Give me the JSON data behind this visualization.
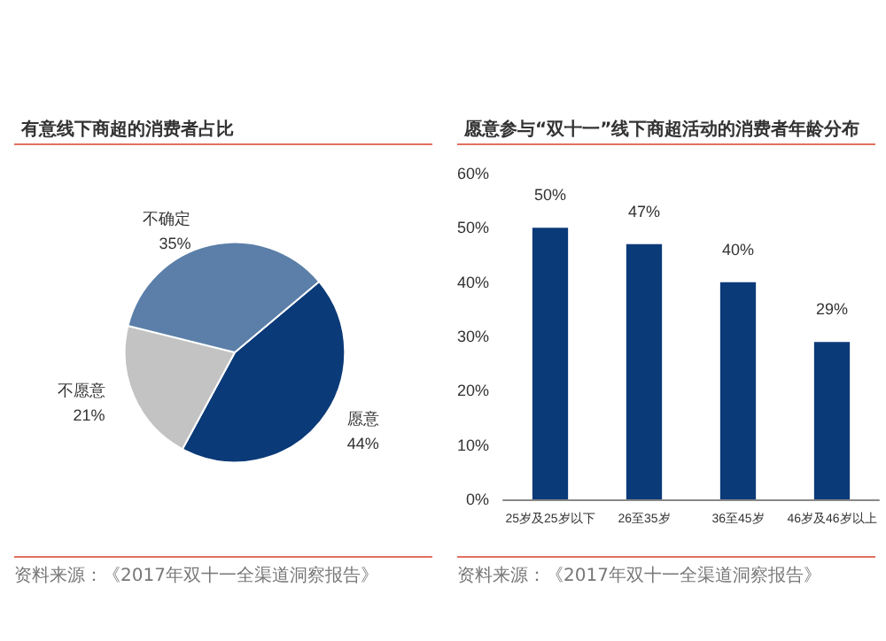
{
  "chart_data": [
    {
      "type": "pie",
      "title": "有意线下商超的消费者占比",
      "categories": [
        "愿意",
        "不愿意",
        "不确定"
      ],
      "values": [
        44,
        21,
        35
      ],
      "value_labels": [
        "44%",
        "21%",
        "35%"
      ],
      "colors": [
        "#0b3a78",
        "#c3c3c3",
        "#5b7fa8"
      ],
      "legend": false,
      "annotations": [
        "资料来源：《2017年双十一全渠道洞察报告》"
      ]
    },
    {
      "type": "bar",
      "title": "愿意参与“双十一”线下商超活动的消费者年龄分布",
      "categories": [
        "25岁及25岁以下",
        "26至35岁",
        "36至45岁",
        "46岁及46岁以上"
      ],
      "values": [
        50,
        47,
        40,
        29
      ],
      "value_labels": [
        "50%",
        "47%",
        "40%",
        "29%"
      ],
      "color": "#0b3a78",
      "grid": false,
      "legend": false,
      "ylim": [
        0,
        60
      ],
      "yticks": [
        {
          "value": 0,
          "label": "0%"
        },
        {
          "value": 10,
          "label": "10%"
        },
        {
          "value": 20,
          "label": "20%"
        },
        {
          "value": 30,
          "label": "30%"
        },
        {
          "value": 40,
          "label": "40%"
        },
        {
          "value": 50,
          "label": "50%"
        },
        {
          "value": 60,
          "label": "60%"
        }
      ],
      "annotations": [
        "资料来源：《2017年双十一全渠道洞察报告》"
      ]
    }
  ]
}
